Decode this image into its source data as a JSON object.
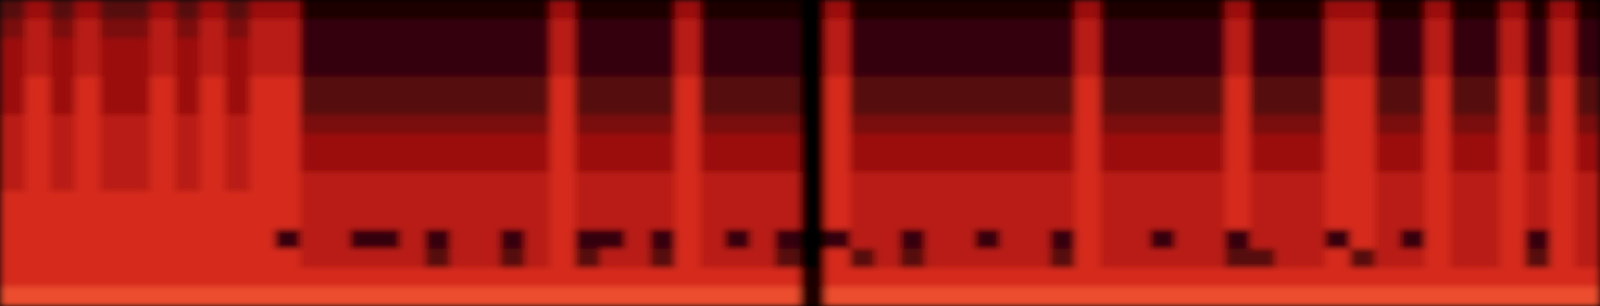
{
  "chart_data": {
    "type": "heatmap",
    "tick_labels": false,
    "zlim": [
      0,
      9
    ],
    "cells": [
      [
        3,
        5,
        3,
        5,
        3,
        3,
        5,
        3,
        5,
        3,
        5,
        5,
        1,
        1,
        1,
        1,
        1,
        1,
        1,
        1,
        1,
        1,
        5,
        1,
        1,
        1,
        1,
        5,
        1,
        1,
        1,
        1,
        0,
        5,
        1,
        1,
        1,
        1,
        1,
        1,
        1,
        1,
        1,
        5,
        1,
        1,
        1,
        1,
        1,
        5,
        1,
        1,
        1,
        5,
        5,
        1,
        1,
        5,
        1,
        1,
        5,
        1,
        5,
        1
      ],
      [
        4,
        6,
        4,
        6,
        4,
        4,
        6,
        4,
        6,
        4,
        6,
        6,
        2,
        2,
        2,
        2,
        2,
        2,
        2,
        2,
        2,
        2,
        6,
        2,
        2,
        2,
        2,
        6,
        2,
        2,
        2,
        2,
        0,
        6,
        2,
        2,
        2,
        2,
        2,
        2,
        2,
        2,
        2,
        6,
        2,
        2,
        2,
        2,
        2,
        6,
        2,
        2,
        2,
        6,
        6,
        2,
        2,
        6,
        2,
        2,
        6,
        2,
        6,
        2
      ],
      [
        5,
        6,
        5,
        6,
        5,
        5,
        6,
        5,
        6,
        5,
        6,
        6,
        2,
        2,
        2,
        2,
        2,
        2,
        2,
        2,
        2,
        2,
        6,
        2,
        2,
        2,
        2,
        6,
        2,
        2,
        2,
        2,
        0,
        6,
        2,
        2,
        2,
        2,
        2,
        2,
        2,
        2,
        2,
        6,
        2,
        2,
        2,
        2,
        2,
        6,
        2,
        2,
        2,
        6,
        6,
        2,
        2,
        6,
        2,
        2,
        6,
        2,
        6,
        2
      ],
      [
        5,
        6,
        5,
        6,
        5,
        5,
        6,
        5,
        6,
        5,
        6,
        6,
        2,
        2,
        2,
        2,
        2,
        2,
        2,
        2,
        2,
        2,
        6,
        2,
        2,
        2,
        2,
        6,
        2,
        2,
        2,
        2,
        0,
        6,
        2,
        2,
        2,
        2,
        2,
        2,
        2,
        2,
        2,
        6,
        2,
        2,
        2,
        2,
        2,
        6,
        2,
        2,
        2,
        6,
        6,
        2,
        2,
        6,
        2,
        2,
        6,
        2,
        6,
        2
      ],
      [
        5,
        7,
        5,
        7,
        5,
        5,
        7,
        5,
        7,
        5,
        7,
        7,
        3,
        3,
        3,
        3,
        3,
        3,
        3,
        3,
        3,
        3,
        7,
        3,
        3,
        3,
        3,
        7,
        3,
        3,
        3,
        3,
        0,
        7,
        3,
        3,
        3,
        3,
        3,
        3,
        3,
        3,
        3,
        7,
        3,
        3,
        3,
        3,
        3,
        7,
        3,
        3,
        3,
        7,
        7,
        3,
        3,
        7,
        3,
        3,
        7,
        3,
        7,
        3
      ],
      [
        5,
        7,
        5,
        7,
        5,
        5,
        7,
        5,
        7,
        5,
        7,
        7,
        3,
        3,
        3,
        3,
        3,
        3,
        3,
        3,
        3,
        3,
        7,
        3,
        3,
        3,
        3,
        7,
        3,
        3,
        3,
        3,
        0,
        7,
        3,
        3,
        3,
        3,
        3,
        3,
        3,
        3,
        3,
        7,
        3,
        3,
        3,
        3,
        3,
        7,
        3,
        3,
        3,
        7,
        7,
        3,
        3,
        7,
        3,
        3,
        7,
        3,
        7,
        3
      ],
      [
        6,
        7,
        6,
        7,
        6,
        6,
        7,
        6,
        7,
        6,
        7,
        7,
        4,
        4,
        4,
        4,
        4,
        4,
        4,
        4,
        4,
        4,
        7,
        4,
        4,
        4,
        4,
        7,
        4,
        4,
        4,
        4,
        0,
        7,
        4,
        4,
        4,
        4,
        4,
        4,
        4,
        4,
        4,
        7,
        4,
        4,
        4,
        4,
        4,
        7,
        4,
        4,
        4,
        7,
        7,
        4,
        4,
        7,
        4,
        4,
        7,
        4,
        7,
        4
      ],
      [
        6,
        7,
        6,
        7,
        6,
        6,
        7,
        6,
        7,
        6,
        7,
        7,
        5,
        5,
        5,
        5,
        5,
        5,
        5,
        5,
        5,
        5,
        7,
        5,
        5,
        5,
        5,
        7,
        5,
        5,
        5,
        5,
        0,
        7,
        5,
        5,
        5,
        5,
        5,
        5,
        5,
        5,
        5,
        7,
        5,
        5,
        5,
        5,
        5,
        7,
        5,
        5,
        5,
        7,
        7,
        5,
        5,
        7,
        5,
        5,
        7,
        5,
        7,
        5
      ],
      [
        6,
        7,
        6,
        7,
        6,
        6,
        7,
        6,
        7,
        6,
        7,
        7,
        5,
        5,
        5,
        5,
        5,
        5,
        5,
        5,
        5,
        5,
        7,
        5,
        5,
        5,
        5,
        7,
        5,
        5,
        5,
        5,
        0,
        7,
        5,
        5,
        5,
        5,
        5,
        5,
        5,
        5,
        5,
        7,
        5,
        5,
        5,
        5,
        5,
        7,
        5,
        5,
        5,
        7,
        7,
        5,
        5,
        7,
        5,
        5,
        7,
        5,
        7,
        5
      ],
      [
        6,
        7,
        6,
        7,
        6,
        6,
        7,
        6,
        7,
        6,
        7,
        7,
        6,
        6,
        6,
        6,
        6,
        6,
        6,
        6,
        6,
        6,
        7,
        6,
        6,
        6,
        6,
        7,
        6,
        6,
        6,
        6,
        0,
        7,
        6,
        6,
        6,
        6,
        6,
        6,
        6,
        6,
        6,
        7,
        6,
        6,
        6,
        6,
        6,
        7,
        6,
        6,
        6,
        7,
        7,
        6,
        6,
        7,
        6,
        6,
        7,
        6,
        7,
        6
      ],
      [
        7,
        7,
        7,
        7,
        7,
        7,
        7,
        7,
        7,
        7,
        7,
        7,
        6,
        6,
        6,
        6,
        6,
        6,
        6,
        6,
        6,
        6,
        7,
        6,
        6,
        6,
        6,
        7,
        6,
        6,
        6,
        6,
        0,
        7,
        6,
        6,
        6,
        6,
        6,
        6,
        6,
        6,
        6,
        7,
        6,
        6,
        6,
        6,
        6,
        7,
        6,
        6,
        6,
        7,
        7,
        6,
        6,
        7,
        6,
        6,
        7,
        6,
        7,
        6
      ],
      [
        7,
        7,
        7,
        7,
        7,
        7,
        7,
        7,
        7,
        7,
        7,
        7,
        6,
        6,
        6,
        6,
        6,
        6,
        6,
        6,
        6,
        6,
        7,
        6,
        6,
        6,
        6,
        7,
        6,
        6,
        6,
        6,
        0,
        7,
        6,
        6,
        6,
        6,
        6,
        6,
        6,
        6,
        6,
        7,
        6,
        6,
        6,
        6,
        6,
        7,
        6,
        6,
        6,
        7,
        7,
        6,
        6,
        7,
        6,
        6,
        7,
        6,
        7,
        6
      ],
      [
        7,
        7,
        7,
        7,
        7,
        7,
        7,
        7,
        7,
        7,
        7,
        2,
        6,
        6,
        2,
        2,
        6,
        2,
        6,
        6,
        2,
        6,
        7,
        2,
        2,
        6,
        2,
        7,
        6,
        2,
        6,
        2,
        0,
        2,
        6,
        6,
        2,
        6,
        6,
        2,
        6,
        6,
        2,
        7,
        6,
        6,
        2,
        6,
        6,
        2,
        6,
        6,
        6,
        2,
        7,
        6,
        2,
        7,
        6,
        6,
        7,
        2,
        7,
        6
      ],
      [
        7,
        7,
        7,
        7,
        7,
        7,
        7,
        7,
        7,
        7,
        7,
        7,
        6,
        6,
        6,
        6,
        6,
        3,
        6,
        6,
        3,
        6,
        7,
        3,
        6,
        6,
        3,
        7,
        6,
        6,
        6,
        3,
        0,
        7,
        3,
        6,
        3,
        6,
        6,
        6,
        6,
        6,
        3,
        7,
        6,
        6,
        6,
        6,
        6,
        3,
        3,
        6,
        6,
        7,
        3,
        6,
        6,
        7,
        6,
        6,
        7,
        3,
        7,
        6
      ],
      [
        7,
        7,
        7,
        7,
        7,
        7,
        7,
        7,
        7,
        7,
        7,
        7,
        7,
        7,
        7,
        7,
        7,
        7,
        7,
        7,
        7,
        7,
        7,
        7,
        7,
        7,
        7,
        7,
        7,
        7,
        7,
        7,
        1,
        7,
        7,
        7,
        7,
        7,
        7,
        7,
        7,
        7,
        7,
        7,
        7,
        7,
        7,
        7,
        7,
        7,
        7,
        7,
        7,
        7,
        7,
        7,
        7,
        7,
        7,
        7,
        7,
        7,
        7,
        7
      ],
      [
        8,
        8,
        8,
        8,
        8,
        8,
        8,
        8,
        8,
        8,
        8,
        8,
        8,
        8,
        8,
        8,
        8,
        8,
        8,
        8,
        8,
        8,
        8,
        8,
        8,
        8,
        8,
        8,
        8,
        8,
        8,
        8,
        1,
        8,
        8,
        8,
        8,
        8,
        8,
        8,
        8,
        8,
        8,
        8,
        8,
        8,
        8,
        8,
        8,
        8,
        8,
        8,
        8,
        8,
        8,
        8,
        8,
        8,
        8,
        8,
        8,
        8,
        8,
        8
      ]
    ]
  }
}
